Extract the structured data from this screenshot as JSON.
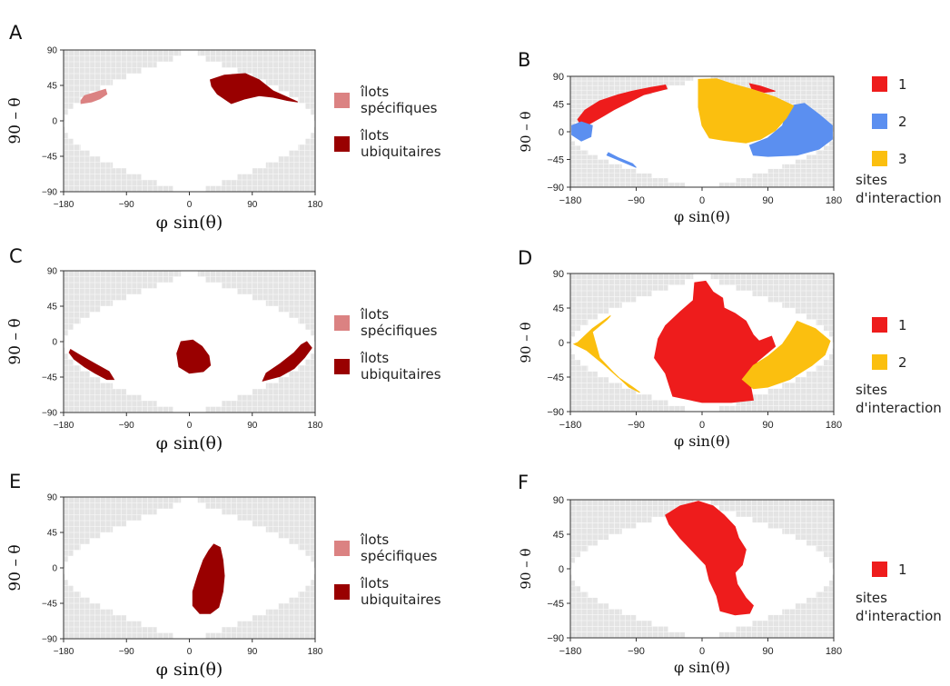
{
  "chart_data": [
    {
      "type": "heatmap",
      "panel": "A",
      "xlabel": "φ sin(θ)",
      "ylabel": "90 – θ",
      "xticks": [
        -180,
        -90,
        0,
        90,
        180
      ],
      "yticks": [
        -90,
        -45,
        0,
        45,
        90
      ],
      "xlim": [
        -180,
        180
      ],
      "ylim": [
        -90,
        90
      ],
      "legend": {
        "position": "right",
        "entries": [
          {
            "label_lines": [
              "îlots",
              "spécifiques"
            ],
            "color": "#db8282"
          },
          {
            "label_lines": [
              "îlots",
              "ubiquitaires"
            ],
            "color": "#990000"
          }
        ]
      },
      "regions": [
        {
          "class": "spécifiques",
          "color": "#db8282",
          "outline": [
            [
              -155,
              26
            ],
            [
              -150,
              32
            ],
            [
              -135,
              36
            ],
            [
              -120,
              40
            ],
            [
              -118,
              34
            ],
            [
              -128,
              28
            ],
            [
              -140,
              24
            ],
            [
              -155,
              22
            ]
          ]
        },
        {
          "class": "ubiquitaires",
          "color": "#990000",
          "outline": [
            [
              30,
              52
            ],
            [
              50,
              58
            ],
            [
              80,
              60
            ],
            [
              100,
              52
            ],
            [
              120,
              38
            ],
            [
              140,
              30
            ],
            [
              155,
              24
            ],
            [
              140,
              26
            ],
            [
              120,
              30
            ],
            [
              100,
              32
            ],
            [
              80,
              28
            ],
            [
              60,
              22
            ],
            [
              40,
              34
            ],
            [
              32,
              44
            ]
          ]
        }
      ]
    },
    {
      "type": "heatmap",
      "panel": "B",
      "xlabel": "φ sin(θ)",
      "ylabel": "90 – θ",
      "xticks": [
        -180,
        -90,
        0,
        90,
        180
      ],
      "yticks": [
        -90,
        -45,
        0,
        45,
        90
      ],
      "xlim": [
        -180,
        180
      ],
      "ylim": [
        -90,
        90
      ],
      "legend": {
        "position": "right",
        "title_lines": [
          "sites",
          "d'interaction"
        ],
        "entries": [
          {
            "label_lines": [
              "1"
            ],
            "color": "#ee1c1c"
          },
          {
            "label_lines": [
              "2"
            ],
            "color": "#5b8ff0"
          },
          {
            "label_lines": [
              "3"
            ],
            "color": "#fbbf0f"
          }
        ]
      },
      "regions": [
        {
          "site": 1,
          "color": "#ee1c1c",
          "outline": [
            [
              -170,
              20
            ],
            [
              -160,
              35
            ],
            [
              -140,
              50
            ],
            [
              -115,
              60
            ],
            [
              -95,
              66
            ],
            [
              -70,
              72
            ],
            [
              -50,
              76
            ],
            [
              -48,
              70
            ],
            [
              -80,
              60
            ],
            [
              -100,
              48
            ],
            [
              -120,
              36
            ],
            [
              -140,
              22
            ],
            [
              -155,
              12
            ],
            [
              -165,
              10
            ]
          ]
        },
        {
          "site": 1,
          "color": "#ee1c1c",
          "outline": [
            [
              65,
              78
            ],
            [
              80,
              74
            ],
            [
              100,
              66
            ],
            [
              85,
              64
            ],
            [
              68,
              70
            ]
          ]
        },
        {
          "site": 2,
          "color": "#5b8ff0",
          "outline": [
            [
              -178,
              10
            ],
            [
              -165,
              16
            ],
            [
              -150,
              10
            ],
            [
              -152,
              -8
            ],
            [
              -165,
              -15
            ],
            [
              -178,
              -5
            ]
          ]
        },
        {
          "site": 2,
          "color": "#5b8ff0",
          "outline": [
            [
              -130,
              -38
            ],
            [
              -110,
              -48
            ],
            [
              -90,
              -58
            ],
            [
              -95,
              -52
            ],
            [
              -115,
              -42
            ],
            [
              -128,
              -34
            ]
          ]
        },
        {
          "site": 2,
          "color": "#5b8ff0",
          "outline": [
            [
              120,
              42
            ],
            [
              140,
              46
            ],
            [
              160,
              28
            ],
            [
              178,
              10
            ],
            [
              178,
              -12
            ],
            [
              160,
              -28
            ],
            [
              130,
              -38
            ],
            [
              90,
              -40
            ],
            [
              70,
              -38
            ],
            [
              65,
              -22
            ],
            [
              90,
              -10
            ],
            [
              110,
              10
            ],
            [
              115,
              30
            ]
          ]
        },
        {
          "site": 3,
          "color": "#fbbf0f",
          "outline": [
            [
              -5,
              85
            ],
            [
              20,
              86
            ],
            [
              40,
              78
            ],
            [
              70,
              68
            ],
            [
              100,
              56
            ],
            [
              125,
              42
            ],
            [
              115,
              22
            ],
            [
              100,
              2
            ],
            [
              80,
              -12
            ],
            [
              60,
              -18
            ],
            [
              30,
              -14
            ],
            [
              10,
              -10
            ],
            [
              0,
              10
            ],
            [
              -5,
              40
            ]
          ]
        }
      ]
    },
    {
      "type": "heatmap",
      "panel": "C",
      "xlabel": "φ sin(θ)",
      "ylabel": "90 – θ",
      "xticks": [
        -180,
        -90,
        0,
        90,
        180
      ],
      "yticks": [
        -90,
        -45,
        0,
        45,
        90
      ],
      "xlim": [
        -180,
        180
      ],
      "ylim": [
        -90,
        90
      ],
      "legend": {
        "position": "right",
        "entries": [
          {
            "label_lines": [
              "îlots",
              "spécifiques"
            ],
            "color": "#db8282"
          },
          {
            "label_lines": [
              "îlots",
              "ubiquitaires"
            ],
            "color": "#990000"
          }
        ]
      },
      "regions": [
        {
          "class": "ubiquitaires",
          "color": "#990000",
          "outline": [
            [
              -170,
              -10
            ],
            [
              -155,
              -18
            ],
            [
              -135,
              -28
            ],
            [
              -115,
              -38
            ],
            [
              -108,
              -48
            ],
            [
              -118,
              -48
            ],
            [
              -135,
              -40
            ],
            [
              -150,
              -32
            ],
            [
              -165,
              -22
            ],
            [
              -172,
              -14
            ]
          ]
        },
        {
          "class": "ubiquitaires",
          "color": "#990000",
          "outline": [
            [
              -12,
              0
            ],
            [
              5,
              2
            ],
            [
              18,
              -6
            ],
            [
              28,
              -18
            ],
            [
              30,
              -30
            ],
            [
              20,
              -38
            ],
            [
              0,
              -40
            ],
            [
              -15,
              -32
            ],
            [
              -18,
              -15
            ]
          ]
        },
        {
          "class": "ubiquitaires",
          "color": "#990000",
          "outline": [
            [
              168,
              0
            ],
            [
              175,
              -8
            ],
            [
              165,
              -20
            ],
            [
              150,
              -34
            ],
            [
              130,
              -44
            ],
            [
              105,
              -50
            ],
            [
              110,
              -40
            ],
            [
              130,
              -28
            ],
            [
              150,
              -14
            ],
            [
              160,
              -4
            ]
          ]
        }
      ]
    },
    {
      "type": "heatmap",
      "panel": "D",
      "xlabel": "φ sin(θ)",
      "ylabel": "90 – θ",
      "xticks": [
        -180,
        -90,
        0,
        90,
        180
      ],
      "yticks": [
        -90,
        -45,
        0,
        45,
        90
      ],
      "xlim": [
        -180,
        180
      ],
      "ylim": [
        -90,
        90
      ],
      "legend": {
        "position": "right",
        "title_lines": [
          "sites",
          "d'interaction"
        ],
        "entries": [
          {
            "label_lines": [
              "1"
            ],
            "color": "#ee1c1c"
          },
          {
            "label_lines": [
              "2"
            ],
            "color": "#fbbf0f"
          }
        ]
      },
      "regions": [
        {
          "site": 1,
          "color": "#ee1c1c",
          "outline": [
            [
              -10,
              78
            ],
            [
              5,
              80
            ],
            [
              15,
              66
            ],
            [
              28,
              58
            ],
            [
              30,
              45
            ],
            [
              45,
              38
            ],
            [
              60,
              28
            ],
            [
              70,
              10
            ],
            [
              78,
              2
            ],
            [
              95,
              8
            ],
            [
              100,
              -5
            ],
            [
              75,
              -25
            ],
            [
              65,
              -50
            ],
            [
              70,
              -75
            ],
            [
              40,
              -78
            ],
            [
              0,
              -78
            ],
            [
              -40,
              -70
            ],
            [
              -50,
              -40
            ],
            [
              -65,
              -20
            ],
            [
              -60,
              5
            ],
            [
              -50,
              22
            ],
            [
              -30,
              40
            ],
            [
              -12,
              55
            ]
          ]
        },
        {
          "site": 2,
          "color": "#fbbf0f",
          "outline": [
            [
              -170,
              0
            ],
            [
              -150,
              18
            ],
            [
              -125,
              35
            ],
            [
              -130,
              30
            ],
            [
              -150,
              14
            ],
            [
              -140,
              -20
            ],
            [
              -120,
              -40
            ],
            [
              -100,
              -58
            ],
            [
              -85,
              -65
            ],
            [
              -95,
              -58
            ],
            [
              -115,
              -45
            ],
            [
              -135,
              -28
            ],
            [
              -158,
              -10
            ],
            [
              -175,
              -2
            ]
          ]
        },
        {
          "site": 2,
          "color": "#fbbf0f",
          "outline": [
            [
              130,
              28
            ],
            [
              155,
              18
            ],
            [
              175,
              2
            ],
            [
              168,
              -16
            ],
            [
              150,
              -30
            ],
            [
              120,
              -48
            ],
            [
              90,
              -58
            ],
            [
              70,
              -60
            ],
            [
              55,
              -48
            ],
            [
              70,
              -30
            ],
            [
              90,
              -18
            ],
            [
              110,
              -2
            ],
            [
              120,
              12
            ]
          ]
        }
      ]
    },
    {
      "type": "heatmap",
      "panel": "E",
      "xlabel": "φ sin(θ)",
      "ylabel": "90 – θ",
      "xticks": [
        -180,
        -90,
        0,
        90,
        180
      ],
      "yticks": [
        -90,
        -45,
        0,
        45,
        90
      ],
      "xlim": [
        -180,
        180
      ],
      "ylim": [
        -90,
        90
      ],
      "legend": {
        "position": "right",
        "entries": [
          {
            "label_lines": [
              "îlots",
              "spécifiques"
            ],
            "color": "#db8282"
          },
          {
            "label_lines": [
              "îlots",
              "ubiquitaires"
            ],
            "color": "#990000"
          }
        ]
      },
      "regions": [
        {
          "class": "ubiquitaires",
          "color": "#990000",
          "outline": [
            [
              35,
              30
            ],
            [
              44,
              26
            ],
            [
              48,
              10
            ],
            [
              50,
              -10
            ],
            [
              48,
              -30
            ],
            [
              42,
              -50
            ],
            [
              30,
              -58
            ],
            [
              15,
              -58
            ],
            [
              5,
              -48
            ],
            [
              5,
              -30
            ],
            [
              12,
              -10
            ],
            [
              20,
              10
            ],
            [
              28,
              22
            ]
          ]
        }
      ]
    },
    {
      "type": "heatmap",
      "panel": "F",
      "xlabel": "φ sin(θ)",
      "ylabel": "90 – θ",
      "xticks": [
        -180,
        -90,
        0,
        90,
        180
      ],
      "yticks": [
        -90,
        -45,
        0,
        45,
        90
      ],
      "xlim": [
        -180,
        180
      ],
      "ylim": [
        -90,
        90
      ],
      "legend": {
        "position": "right",
        "title_lines": [
          "sites",
          "d'interaction"
        ],
        "entries": [
          {
            "label_lines": [
              "1"
            ],
            "color": "#ee1c1c"
          }
        ]
      },
      "regions": [
        {
          "site": 1,
          "color": "#ee1c1c",
          "outline": [
            [
              -50,
              70
            ],
            [
              -30,
              82
            ],
            [
              -5,
              88
            ],
            [
              15,
              82
            ],
            [
              30,
              70
            ],
            [
              45,
              55
            ],
            [
              50,
              40
            ],
            [
              60,
              25
            ],
            [
              55,
              5
            ],
            [
              45,
              -5
            ],
            [
              48,
              -20
            ],
            [
              60,
              -38
            ],
            [
              70,
              -48
            ],
            [
              65,
              -58
            ],
            [
              45,
              -60
            ],
            [
              25,
              -55
            ],
            [
              20,
              -35
            ],
            [
              10,
              -15
            ],
            [
              5,
              5
            ],
            [
              -10,
              20
            ],
            [
              -30,
              40
            ],
            [
              -45,
              58
            ]
          ]
        }
      ]
    }
  ]
}
